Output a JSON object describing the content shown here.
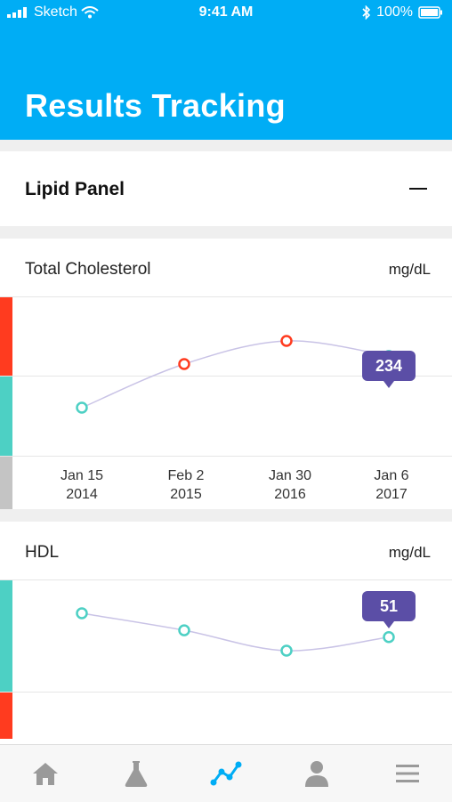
{
  "status_bar": {
    "carrier": "Sketch",
    "time": "9:41 AM",
    "battery": "100%"
  },
  "header": {
    "title": "Results Tracking"
  },
  "panel": {
    "name": "Lipid Panel",
    "toggle_icon": "minus-icon"
  },
  "x_labels": [
    {
      "line1": "Jan 15",
      "line2": "2014"
    },
    {
      "line1": "Feb 2",
      "line2": "2015"
    },
    {
      "line1": "Jan 30",
      "line2": "2016"
    },
    {
      "line1": "Jan 6",
      "line2": "2017"
    }
  ],
  "charts": {
    "cholesterol": {
      "title": "Total Cholesterol",
      "unit": "mg/dL",
      "callout": "234"
    },
    "hdl": {
      "title": "HDL",
      "unit": "mg/dL",
      "callout": "51"
    }
  },
  "chart_data": [
    {
      "type": "line",
      "title": "Total Cholesterol",
      "unit": "mg/dL",
      "categories": [
        "Jan 15 2014",
        "Feb 2 2015",
        "Jan 30 2016",
        "Jan 6 2017"
      ],
      "values": [
        196,
        228,
        245,
        234
      ],
      "point_status": [
        "normal",
        "high",
        "high",
        "normal"
      ],
      "highlighted_value": 234
    },
    {
      "type": "line",
      "title": "HDL",
      "unit": "mg/dL",
      "categories": [
        "Jan 15 2014",
        "Feb 2 2015",
        "Jan 30 2016",
        "Jan 6 2017"
      ],
      "values": [
        58,
        53,
        47,
        51
      ],
      "point_status": [
        "normal",
        "normal",
        "normal",
        "normal"
      ],
      "highlighted_value": 51
    }
  ],
  "colors": {
    "header_bg": "#00adf5",
    "high": "#ff3b1f",
    "normal": "#4dd0c4",
    "neutral": "#c4c4c4",
    "callout": "#5b4ea6",
    "line": "#c9c3e6",
    "tab_active": "#00adf5",
    "tab_inactive": "#9a9a9a"
  },
  "tabbar": {
    "tabs": [
      {
        "icon": "home-icon",
        "active": false
      },
      {
        "icon": "lab-flask-icon",
        "active": false
      },
      {
        "icon": "trends-icon",
        "active": true
      },
      {
        "icon": "profile-icon",
        "active": false
      },
      {
        "icon": "menu-icon",
        "active": false
      }
    ]
  }
}
